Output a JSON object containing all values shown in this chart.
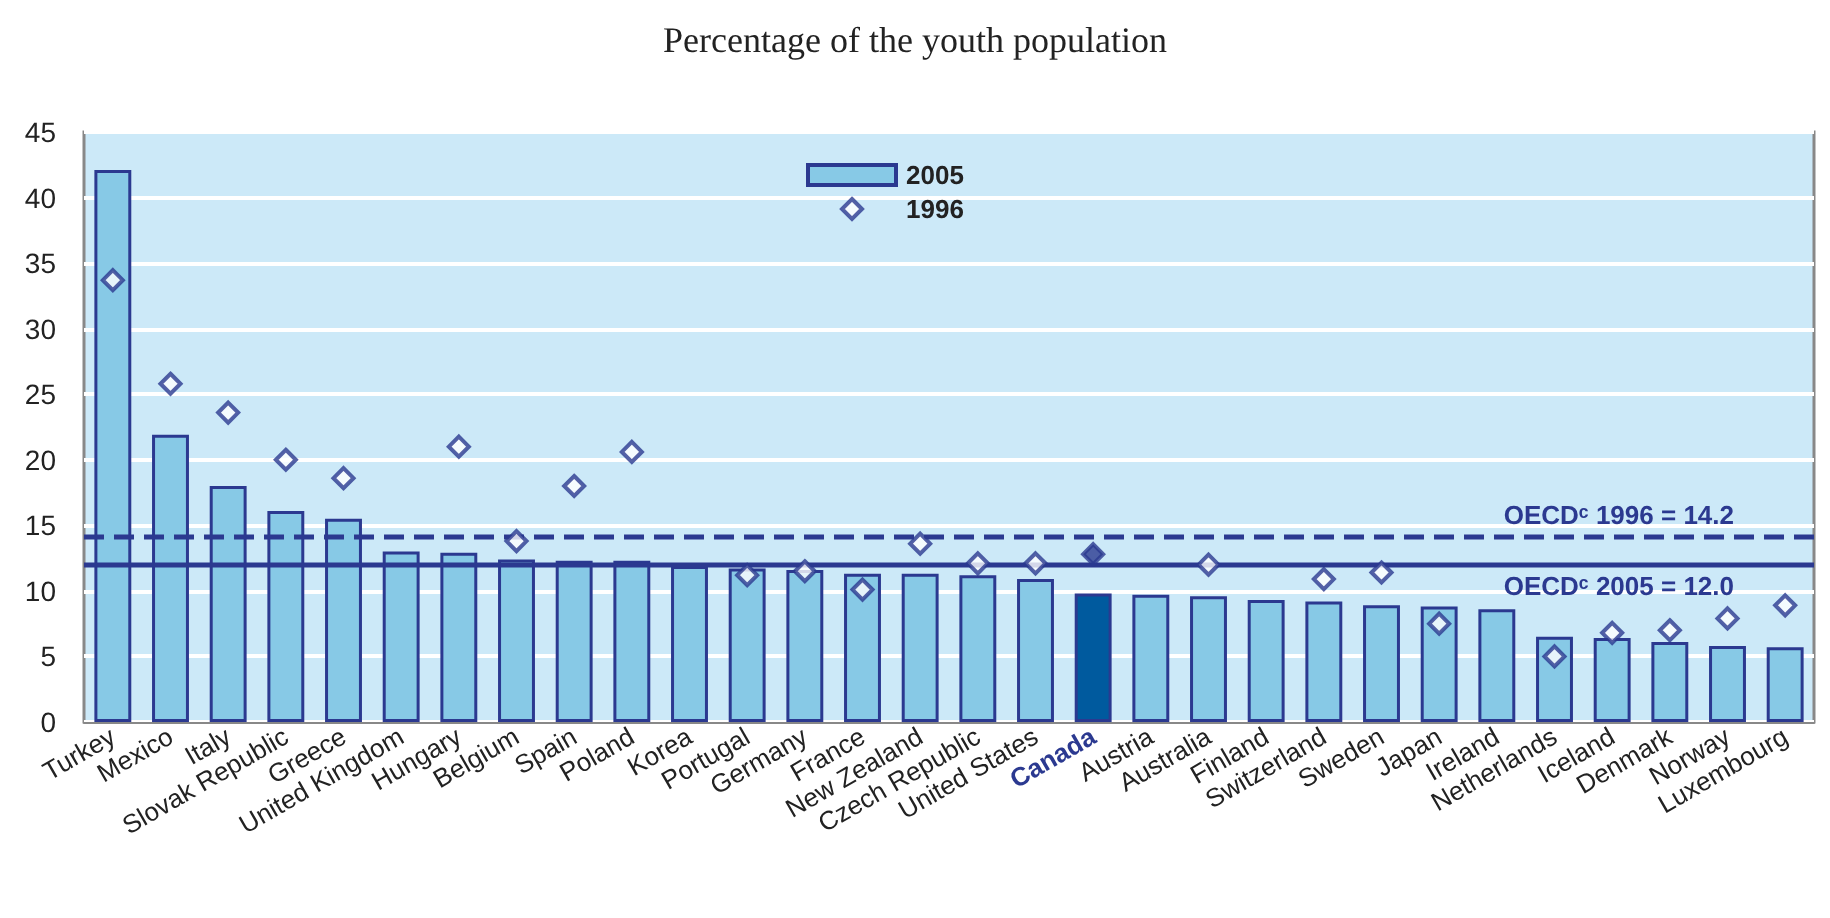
{
  "chart_data": {
    "type": "bar",
    "title": "Percentage of the youth population",
    "categories": [
      "Turkey",
      "Mexico",
      "Italy",
      "Slovak Republic",
      "Greece",
      "United Kingdom",
      "Hungary",
      "Belgium",
      "Spain",
      "Poland",
      "Korea",
      "Portugal",
      "Germany",
      "France",
      "New Zealand",
      "Czech Republic",
      "United States",
      "Canada",
      "Austria",
      "Australia",
      "Finland",
      "Switzerland",
      "Sweden",
      "Japan",
      "Ireland",
      "Netherlands",
      "Iceland",
      "Denmark",
      "Norway",
      "Luxembourg"
    ],
    "series": [
      {
        "name": "2005",
        "color": "#87c9e6",
        "colors": [
          "#87c9e6",
          "#87c9e6",
          "#87c9e6",
          "#87c9e6",
          "#87c9e6",
          "#87c9e6",
          "#87c9e6",
          "#87c9e6",
          "#87c9e6",
          "#87c9e6",
          "#87c9e6",
          "#87c9e6",
          "#87c9e6",
          "#87c9e6",
          "#87c9e6",
          "#87c9e6",
          "#87c9e6",
          "#005a9e",
          "#87c9e6",
          "#87c9e6",
          "#87c9e6",
          "#87c9e6",
          "#87c9e6",
          "#87c9e6",
          "#87c9e6",
          "#87c9e6",
          "#87c9e6",
          "#87c9e6",
          "#87c9e6",
          "#87c9e6"
        ],
        "values": [
          42.1,
          21.9,
          18.0,
          16.1,
          15.5,
          13.0,
          12.9,
          12.4,
          12.3,
          12.3,
          11.9,
          11.7,
          11.6,
          11.3,
          11.3,
          11.2,
          10.9,
          9.8,
          9.7,
          9.6,
          9.3,
          9.2,
          8.9,
          8.8,
          8.6,
          6.5,
          6.4,
          6.1,
          5.8,
          5.7
        ]
      },
      {
        "name": "1996",
        "type": "scatter",
        "marker": "diamond",
        "color": "#2b3990",
        "colors": [
          "#ffffff",
          "#ffffff",
          "#ffffff",
          "#ffffff",
          "#ffffff",
          "#ffffff",
          "#ffffff",
          "#ffffff",
          "#ffffff",
          "#ffffff",
          "#ffffff",
          "#ffffff",
          "#ffffff",
          "#ffffff",
          "#ffffff",
          "#ffffff",
          "#ffffff",
          "#2b3990",
          "#ffffff",
          "#ffffff",
          "#ffffff",
          "#ffffff",
          "#ffffff",
          "#ffffff",
          "#ffffff",
          "#ffffff",
          "#ffffff",
          "#ffffff",
          "#ffffff",
          "#ffffff"
        ],
        "values": [
          33.7,
          25.8,
          23.6,
          20.0,
          18.6,
          null,
          21.0,
          13.8,
          18.0,
          20.6,
          null,
          11.2,
          11.5,
          10.1,
          13.6,
          12.1,
          12.1,
          12.8,
          null,
          12.0,
          null,
          10.9,
          11.4,
          7.5,
          null,
          5.0,
          6.8,
          7.0,
          7.9,
          8.9
        ]
      }
    ],
    "ylim": [
      0,
      45
    ],
    "yticks": [
      0,
      5,
      10,
      15,
      20,
      25,
      30,
      35,
      40,
      45
    ],
    "grid": "y",
    "legend": "top",
    "ref_lines": [
      {
        "axis": "y",
        "value": 14.2,
        "label": "OECDᶜ 1996 = 14.2",
        "line_style": "dashed",
        "color": "#2b3990"
      },
      {
        "axis": "y",
        "value": 12.0,
        "label": "OECDᶜ 2005 = 12.0",
        "line_style": "solid",
        "color": "#2b3990"
      }
    ]
  }
}
